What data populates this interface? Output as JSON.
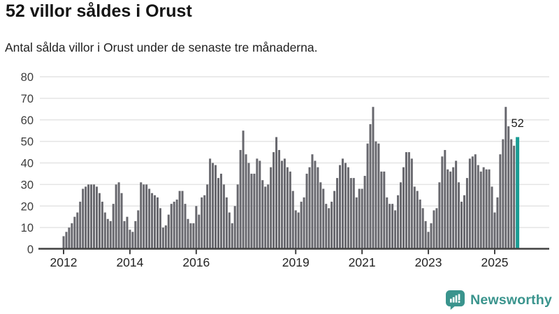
{
  "header": {
    "title": "52 villor såldes i Orust",
    "subtitle": "Antal sålda villor i Orust under de senaste tre månaderna."
  },
  "footer": {
    "brand": "Newsworthy"
  },
  "colors": {
    "bar": "#68686e",
    "highlight": "#1a9c94",
    "grid": "#e4e4e4",
    "axis": "#414141",
    "tick_label": "#242424",
    "y_label": "#3d3d3d",
    "annotation": "#1c1c1c",
    "brand_teal": "#3a948d"
  },
  "chart_data": {
    "type": "bar",
    "title": "52 villor såldes i Orust",
    "subtitle": "Antal sålda villor i Orust under de senaste tre månaderna.",
    "xlabel": "",
    "ylabel": "",
    "grid": true,
    "legend": false,
    "ylim": [
      0,
      80
    ],
    "y_ticks": [
      0,
      10,
      20,
      30,
      40,
      50,
      60,
      70,
      80
    ],
    "x_tick_labels": [
      "2012",
      "2014",
      "2016",
      "2019",
      "2021",
      "2023",
      "2025"
    ],
    "x_tick_month_index": [
      0,
      24,
      48,
      84,
      108,
      132,
      156
    ],
    "series_start": "2012-01",
    "highlight_last": true,
    "highlight_value_label": "52",
    "values": [
      6,
      8,
      10,
      12,
      15,
      17,
      22,
      28,
      29,
      30,
      30,
      30,
      29,
      26,
      22,
      17,
      14,
      13,
      21,
      30,
      31,
      26,
      13,
      15,
      9,
      8,
      13,
      18,
      31,
      30,
      30,
      28,
      26,
      25,
      24,
      19,
      10,
      11,
      16,
      21,
      22,
      23,
      27,
      27,
      21,
      14,
      12,
      12,
      20,
      16,
      24,
      25,
      30,
      42,
      40,
      39,
      33,
      35,
      30,
      24,
      17,
      12,
      20,
      30,
      46,
      55,
      44,
      40,
      35,
      35,
      42,
      41,
      32,
      29,
      30,
      38,
      45,
      52,
      46,
      41,
      42,
      38,
      36,
      27,
      18,
      17,
      22,
      24,
      35,
      38,
      44,
      41,
      38,
      31,
      28,
      21,
      19,
      22,
      27,
      33,
      39,
      42,
      40,
      38,
      33,
      33,
      24,
      28,
      28,
      34,
      49,
      58,
      66,
      50,
      49,
      36,
      36,
      24,
      21,
      21,
      18,
      25,
      31,
      38,
      45,
      45,
      42,
      29,
      27,
      23,
      19,
      13,
      8,
      12,
      18,
      19,
      31,
      43,
      46,
      37,
      36,
      38,
      41,
      31,
      22,
      25,
      33,
      42,
      43,
      44,
      39,
      36,
      38,
      37,
      37,
      29,
      17,
      24,
      44,
      51,
      66,
      57,
      51,
      48,
      52
    ]
  }
}
